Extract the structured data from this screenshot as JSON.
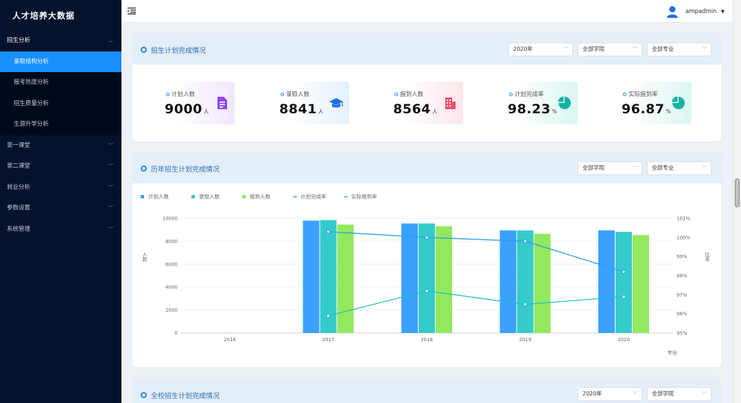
{
  "sidebar": {
    "brand": "人才培养大数据",
    "menu": [
      {
        "label": "招生分析",
        "open": true
      },
      {
        "label": "第一课堂"
      },
      {
        "label": "第二课堂"
      },
      {
        "label": "就业分析"
      },
      {
        "label": "参数设置"
      },
      {
        "label": "系统管理"
      }
    ],
    "submenu": [
      {
        "label": "录取结构分析",
        "active": true
      },
      {
        "label": "报考热度分析"
      },
      {
        "label": "招生质量分析"
      },
      {
        "label": "生源升学分析"
      }
    ]
  },
  "topbar": {
    "username": "ampadmin"
  },
  "section1": {
    "title": "招生计划完成情况",
    "filters": [
      "2020年",
      "全部学院",
      "全部专业"
    ],
    "stats": [
      {
        "label": "计划人数",
        "value": "9000",
        "unit": "人",
        "icon": "document-icon",
        "color": "#8e44ec"
      },
      {
        "label": "录取人数",
        "value": "8841",
        "unit": "人",
        "icon": "graduation-cap-icon",
        "color": "#1e88e5"
      },
      {
        "label": "报到人数",
        "value": "8564",
        "unit": "人",
        "icon": "building-icon",
        "color": "#f0506e"
      },
      {
        "label": "计划完成率",
        "value": "98.23",
        "unit": "%",
        "icon": "pie-icon",
        "color": "#16b1a5"
      },
      {
        "label": "实际报到率",
        "value": "96.87",
        "unit": "%",
        "icon": "pie-icon",
        "color": "#16b1a5"
      }
    ]
  },
  "section2": {
    "title": "历年招生计划完成情况",
    "filters": [
      "全部学院",
      "全部专业"
    ]
  },
  "section3": {
    "title": "全校招生计划完成情况",
    "filters": [
      "2020年",
      "全部学院"
    ]
  },
  "chart_data": {
    "type": "bar",
    "categories": [
      "2016",
      "2017",
      "2018",
      "2019",
      "2020"
    ],
    "series": [
      {
        "name": "计划人数",
        "kind": "bar",
        "axis": "left",
        "color": "#3ba1ff",
        "values": [
          null,
          9800,
          9550,
          8950,
          8950
        ]
      },
      {
        "name": "录取人数",
        "kind": "bar",
        "axis": "left",
        "color": "#36cbcb",
        "values": [
          null,
          9850,
          9550,
          8950,
          8820
        ]
      },
      {
        "name": "报到人数",
        "kind": "bar",
        "axis": "left",
        "color": "#92e85e",
        "values": [
          null,
          9450,
          9300,
          8650,
          8540
        ]
      },
      {
        "name": "计划完成率",
        "kind": "line",
        "axis": "right",
        "color": "#2d9cf0",
        "values": [
          null,
          100.3,
          100.0,
          99.8,
          98.2
        ]
      },
      {
        "name": "实际报到率",
        "kind": "line",
        "axis": "right",
        "color": "#1fbfc3",
        "values": [
          null,
          95.9,
          97.2,
          96.5,
          96.9
        ]
      }
    ],
    "ylabel": "人数",
    "y2label": "比率",
    "xlabel": "年份",
    "ylim": [
      0,
      10000
    ],
    "yticks": [
      "0",
      "2000",
      "4000",
      "6000",
      "8000",
      "10000"
    ],
    "y2lim": [
      95,
      101
    ],
    "y2ticks": [
      "95%",
      "96%",
      "97%",
      "98%",
      "99%",
      "100%",
      "101%"
    ],
    "legend_position": "top-left"
  }
}
